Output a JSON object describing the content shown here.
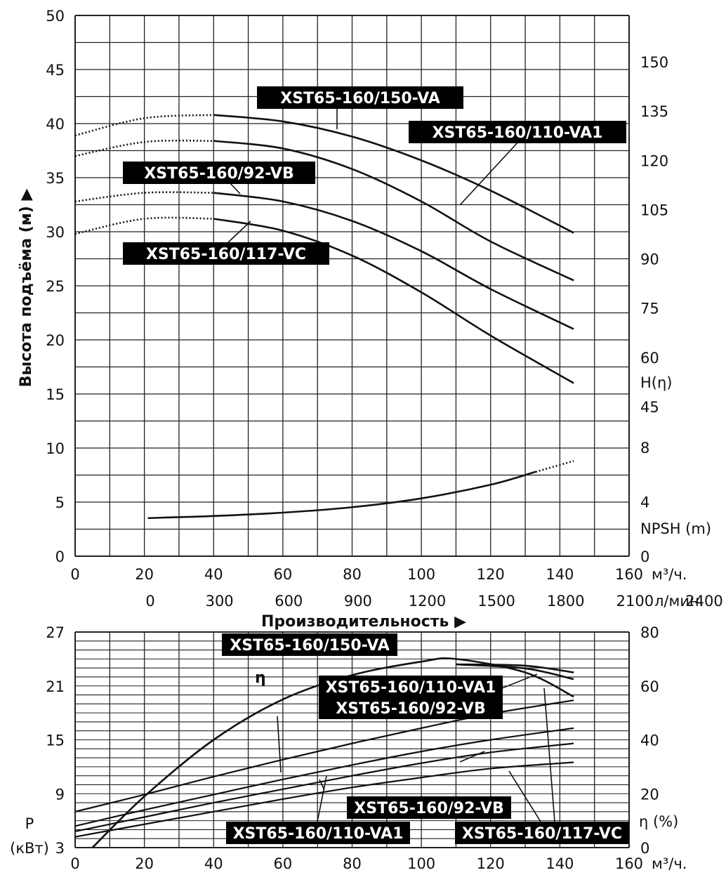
{
  "chart_data": [
    {
      "type": "line",
      "ylabel": "Высота подъёма (м) ▶",
      "xlabel": "Производительность ▶",
      "x_units": "м³/ч.",
      "x2_units": "л/мин.",
      "right_label_h": "H(η)",
      "right_label_npsh": "NPSH (m)",
      "xlim": [
        0,
        160
      ],
      "ylim": [
        0,
        50
      ],
      "x_ticks": [
        0,
        20,
        40,
        60,
        80,
        100,
        120,
        140,
        160
      ],
      "x2_ticks": [
        0,
        300,
        600,
        900,
        1200,
        1500,
        1800,
        2100,
        2400
      ],
      "y_ticks": [
        0,
        5,
        10,
        15,
        20,
        25,
        30,
        35,
        40,
        45,
        50
      ],
      "right_ticks_h": [
        45,
        60,
        75,
        90,
        105,
        120,
        135,
        150
      ],
      "right_ticks_npsh": [
        0,
        4,
        8
      ],
      "grid": true,
      "series": [
        {
          "name": "XST65-160/150-VA",
          "dashed_x": [
            0,
            20,
            40
          ],
          "dashed_y": [
            38.9,
            40.5,
            40.8
          ],
          "x": [
            40,
            60,
            80,
            100,
            120,
            144
          ],
          "y": [
            40.8,
            40.2,
            38.8,
            36.6,
            33.8,
            29.9
          ]
        },
        {
          "name": "XST65-160/110-VA1",
          "dashed_x": [
            0,
            20,
            40
          ],
          "dashed_y": [
            37.0,
            38.3,
            38.4
          ],
          "x": [
            40,
            60,
            80,
            100,
            120,
            144
          ],
          "y": [
            38.4,
            37.7,
            35.8,
            32.8,
            29.1,
            25.5
          ]
        },
        {
          "name": "XST65-160/92-VB",
          "dashed_x": [
            0,
            20,
            40
          ],
          "dashed_y": [
            32.8,
            33.6,
            33.6
          ],
          "x": [
            40,
            60,
            80,
            100,
            120,
            144
          ],
          "y": [
            33.6,
            32.8,
            31.0,
            28.2,
            24.7,
            21.0
          ]
        },
        {
          "name": "XST65-160/117-VC",
          "dashed_x": [
            0,
            20,
            40
          ],
          "dashed_y": [
            29.8,
            31.2,
            31.2
          ],
          "x": [
            40,
            60,
            80,
            100,
            120,
            144
          ],
          "y": [
            31.2,
            30.1,
            27.8,
            24.4,
            20.4,
            16.0
          ]
        },
        {
          "name": "NPSH",
          "x": [
            21,
            40,
            60,
            80,
            100,
            120,
            133
          ],
          "y": [
            2.8,
            2.95,
            3.2,
            3.6,
            4.25,
            5.25,
            6.2
          ],
          "dashed_x": [
            133,
            144
          ],
          "dashed_y": [
            6.2,
            7.0
          ]
        }
      ]
    },
    {
      "type": "line",
      "ylabel_left": "P",
      "ylabel_left2": "(кВт)",
      "ylabel_right": "η (%)",
      "x_units": "м³/ч.",
      "xlim": [
        0,
        160
      ],
      "ylim_left": [
        3,
        27
      ],
      "ylim_right": [
        0,
        80
      ],
      "x_ticks": [
        0,
        20,
        40,
        60,
        80,
        100,
        120,
        140,
        160
      ],
      "y_ticks": [
        3,
        9,
        15,
        21,
        27
      ],
      "right_ticks": [
        0,
        20,
        40,
        60,
        80
      ],
      "eta_label": "η",
      "grid": true,
      "series": [
        {
          "name": "XST65-160/150-VA",
          "x": [
            0,
            20,
            40,
            60,
            80,
            100,
            120,
            144
          ],
          "y": [
            7.0,
            8.9,
            10.9,
            12.8,
            14.6,
            16.3,
            17.9,
            19.4
          ]
        },
        {
          "name": "XST65-160/110-VA1",
          "x": [
            0,
            20,
            40,
            60,
            80,
            100,
            120,
            144
          ],
          "y": [
            5.4,
            7.2,
            8.9,
            10.6,
            12.2,
            13.7,
            15.0,
            16.3
          ]
        },
        {
          "name": "XST65-160/92-VB",
          "x": [
            0,
            20,
            40,
            60,
            80,
            100,
            120,
            144
          ],
          "y": [
            4.8,
            6.4,
            8.0,
            9.5,
            11.0,
            12.4,
            13.6,
            14.6
          ]
        },
        {
          "name": "XST65-160/117-VC",
          "x": [
            0,
            20,
            40,
            60,
            80,
            100,
            120,
            144
          ],
          "y": [
            4.2,
            5.6,
            7.0,
            8.4,
            9.7,
            10.8,
            11.8,
            12.5
          ]
        },
        {
          "name": "η XST65-160/150-VA",
          "x": [
            110,
            130,
            144
          ],
          "y": [
            68,
            67.5,
            65
          ]
        },
        {
          "name": "η XST65-160/110-VA1",
          "x": [
            110,
            130,
            144
          ],
          "y": [
            68,
            66.5,
            62.5
          ]
        },
        {
          "name": "η",
          "x": [
            5,
            20,
            40,
            60,
            80,
            100,
            110,
            130,
            144
          ],
          "y": [
            0,
            19,
            40,
            55,
            64,
            69,
            70,
            65,
            56
          ]
        }
      ]
    }
  ]
}
